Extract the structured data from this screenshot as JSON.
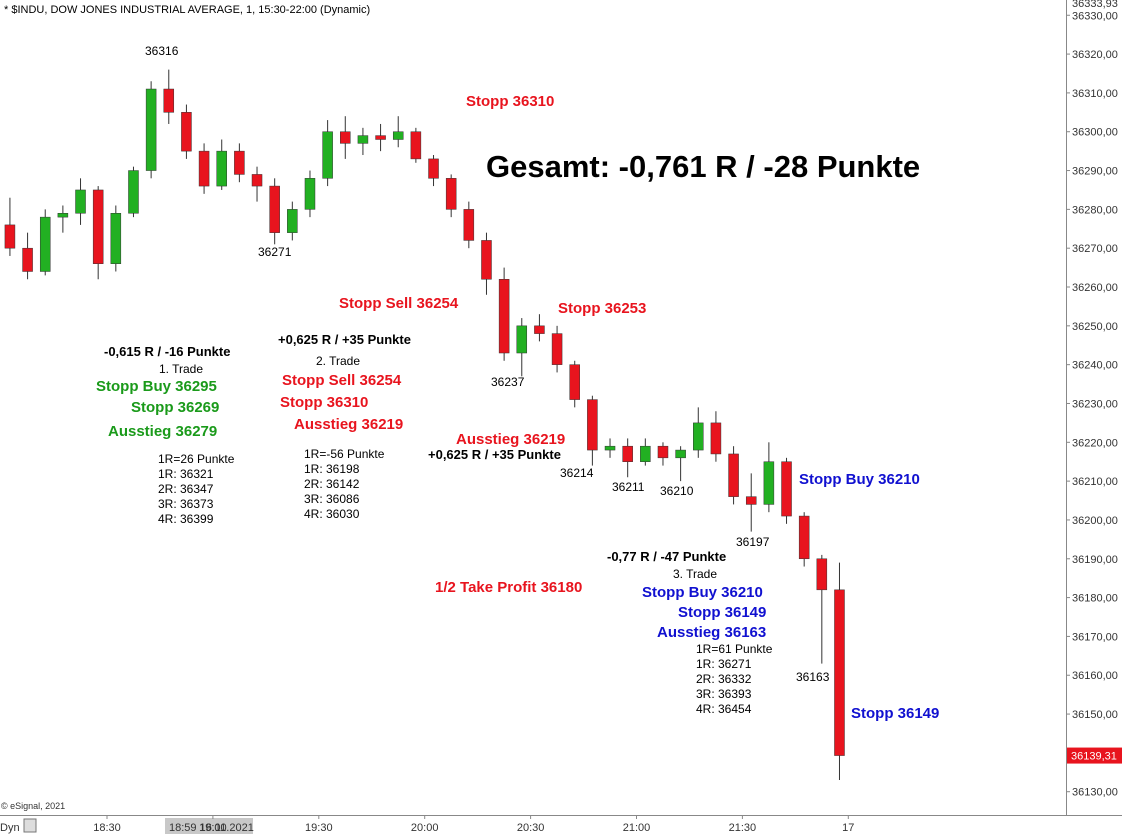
{
  "chart_data": {
    "type": "candlestick",
    "title": "* $INDU, DOW JONES INDUSTRIAL AVERAGE, 1, 15:30-22:00 (Dynamic)",
    "up_color": "#22b022",
    "down_color": "#e8141e",
    "x": [
      "18:00",
      "18:05",
      "18:10",
      "18:15",
      "18:20",
      "18:25",
      "18:30",
      "18:35",
      "18:40",
      "18:45",
      "18:50",
      "18:55",
      "19:00",
      "19:05",
      "19:10",
      "19:15",
      "19:20",
      "19:25",
      "19:30",
      "19:35",
      "19:40",
      "19:45",
      "19:50",
      "19:55",
      "20:00",
      "20:05",
      "20:10",
      "20:15",
      "20:20",
      "20:25",
      "20:30",
      "20:35",
      "20:40",
      "20:45",
      "20:50",
      "20:55",
      "21:00",
      "21:05",
      "21:10",
      "21:15",
      "21:20",
      "21:25",
      "21:30",
      "21:35",
      "21:40",
      "21:45",
      "21:50",
      "21:55"
    ],
    "open": [
      36276,
      36270,
      36264,
      36278,
      36279,
      36285,
      36266,
      36279,
      36290,
      36311,
      36305,
      36295,
      36286,
      36295,
      36289,
      36286,
      36274,
      36280,
      36288,
      36300,
      36297,
      36299,
      36298,
      36300,
      36293,
      36288,
      36280,
      36272,
      36262,
      36243,
      36250,
      36248,
      36240,
      36231,
      36218,
      36219,
      36215,
      36219,
      36216,
      36218,
      36225,
      36217,
      36206,
      36204,
      36215,
      36201,
      36190,
      36182
    ],
    "high": [
      36283,
      36274,
      36280,
      36281,
      36288,
      36286,
      36281,
      36291,
      36313,
      36316,
      36307,
      36297,
      36298,
      36297,
      36291,
      36288,
      36282,
      36290,
      36303,
      36304,
      36301,
      36302,
      36304,
      36301,
      36294,
      36289,
      36282,
      36274,
      36265,
      36252,
      36253,
      36250,
      36241,
      36232,
      36221,
      36221,
      36221,
      36220,
      36219,
      36229,
      36228,
      36219,
      36212,
      36220,
      36216,
      36202,
      36191,
      36189
    ],
    "low": [
      36268,
      36262,
      36263,
      36274,
      36276,
      36262,
      36264,
      36278,
      36288,
      36302,
      36293,
      36284,
      36285,
      36287,
      36282,
      36271,
      36272,
      36278,
      36286,
      36293,
      36294,
      36295,
      36296,
      36292,
      36286,
      36278,
      36270,
      36258,
      36241,
      36237,
      36246,
      36238,
      36229,
      36214,
      36216,
      36211,
      36214,
      36214,
      36210,
      36216,
      36215,
      36204,
      36197,
      36202,
      36199,
      36188,
      36163,
      36133
    ],
    "close": [
      36270,
      36264,
      36278,
      36279,
      36285,
      36266,
      36279,
      36290,
      36311,
      36305,
      36295,
      36286,
      36295,
      36289,
      36286,
      36274,
      36280,
      36288,
      36300,
      36297,
      36299,
      36298,
      36300,
      36293,
      36288,
      36280,
      36272,
      36262,
      36243,
      36250,
      36248,
      36240,
      36231,
      36218,
      36219,
      36215,
      36219,
      36216,
      36218,
      36225,
      36217,
      36206,
      36204,
      36215,
      36201,
      36190,
      36182,
      36139.31
    ],
    "ylim": [
      36124,
      36333.93
    ],
    "top_price": {
      "value": 36333.93,
      "label": "36333,93"
    },
    "last_price": {
      "value": 36139.31,
      "label": "36139,31"
    },
    "yticks": [
      {
        "value": 36330,
        "label": "36330,00"
      },
      {
        "value": 36320,
        "label": "36320,00"
      },
      {
        "value": 36310,
        "label": "36310,00"
      },
      {
        "value": 36300,
        "label": "36300,00"
      },
      {
        "value": 36290,
        "label": "36290,00"
      },
      {
        "value": 36280,
        "label": "36280,00"
      },
      {
        "value": 36270,
        "label": "36270,00"
      },
      {
        "value": 36260,
        "label": "36260,00"
      },
      {
        "value": 36250,
        "label": "36250,00"
      },
      {
        "value": 36240,
        "label": "36240,00"
      },
      {
        "value": 36230,
        "label": "36230,00"
      },
      {
        "value": 36220,
        "label": "36220,00"
      },
      {
        "value": 36210,
        "label": "36210,00"
      },
      {
        "value": 36200,
        "label": "36200,00"
      },
      {
        "value": 36190,
        "label": "36190,00"
      },
      {
        "value": 36180,
        "label": "36180,00"
      },
      {
        "value": 36170,
        "label": "36170,00"
      },
      {
        "value": 36160,
        "label": "36160,00"
      },
      {
        "value": 36150,
        "label": "36150,00"
      },
      {
        "value": 36140,
        "label": "36140,00"
      },
      {
        "value": 36130,
        "label": "36130,00"
      }
    ],
    "xticks": [
      "18:30",
      "19:00",
      "19:30",
      "20:00",
      "20:30",
      "21:00",
      "21:30",
      {
        "value": "22:00",
        "label": "17"
      }
    ],
    "crosshair_label": "18:59 16.11.2021",
    "period_label": "Dyn",
    "copyright": "© eSignal, 2021",
    "annotations": [
      "36316",
      "36271",
      "Stopp 36310",
      "Gesamt: -0,761 R / -28 Punkte",
      "Stopp Sell 36254",
      "Stopp 36253",
      "-0,615 R / -16 Punkte",
      "1. Trade",
      "Stopp Buy 36295",
      "Stopp 36269",
      "Ausstieg 36279",
      "1R=26 Punkte",
      "1R: 36321",
      "2R: 36347",
      "3R: 36373",
      "4R: 36399",
      "+0,625 R / +35 Punkte",
      "2. Trade",
      "Stopp Sell 36254",
      "Stopp 36310",
      "Ausstieg 36219",
      "1R=-56 Punkte",
      "1R: 36198",
      "2R: 36142",
      "3R: 36086",
      "4R: 36030",
      "36237",
      "Ausstieg 36219",
      "+0,625 R / +35 Punkte",
      "36214",
      "36211",
      "36210",
      "36197",
      "36163",
      "Stopp Buy 36210",
      "-0,77 R / -47 Punkte",
      "3. Trade",
      "1/2 Take Profit 36180",
      "Stopp Buy 36210",
      "Stopp 36149",
      "Ausstieg 36163",
      "1R=61 Punkte",
      "1R: 36271",
      "2R: 36332",
      "3R: 36393",
      "4R: 36454",
      "Stopp 36149"
    ]
  }
}
